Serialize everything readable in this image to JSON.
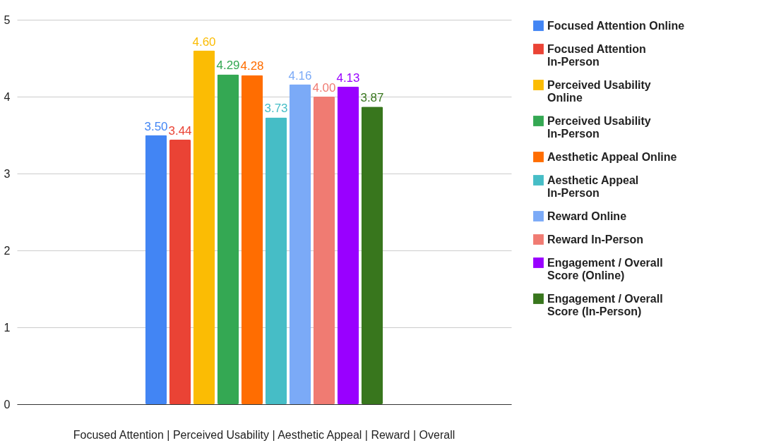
{
  "chart_data": {
    "type": "bar",
    "categories": [
      "Focused Attention | Perceived Usability | Aesthetic Appeal | Reward | Overall"
    ],
    "series": [
      {
        "name": "Focused Attention Online",
        "color": "#4285f4",
        "values": [
          3.5
        ],
        "value_labels": [
          "3.50"
        ]
      },
      {
        "name": "Focused Attention In-Person",
        "color": "#ea4335",
        "values": [
          3.44
        ],
        "value_labels": [
          "3.44"
        ]
      },
      {
        "name": "Perceived Usability Online",
        "color": "#fbbc04",
        "values": [
          4.6
        ],
        "value_labels": [
          "4.60"
        ]
      },
      {
        "name": "Perceived Usability In-Person",
        "color": "#34a853",
        "values": [
          4.29
        ],
        "value_labels": [
          "4.29"
        ]
      },
      {
        "name": "Aesthetic Appeal Online",
        "color": "#ff6d01",
        "values": [
          4.28
        ],
        "value_labels": [
          "4.28"
        ]
      },
      {
        "name": "Aesthetic Appeal In-Person",
        "color": "#46bdc6",
        "values": [
          3.73
        ],
        "value_labels": [
          "3.73"
        ]
      },
      {
        "name": "Reward Online",
        "color": "#7baaf7",
        "values": [
          4.16
        ],
        "value_labels": [
          "4.16"
        ]
      },
      {
        "name": "Reward In-Person",
        "color": "#f07b72",
        "values": [
          4.0
        ],
        "value_labels": [
          "4.00"
        ]
      },
      {
        "name": "Engagement / Overall Score (Online)",
        "color": "#9900ff",
        "values": [
          4.13
        ],
        "value_labels": [
          "4.13"
        ]
      },
      {
        "name": "Engagement / Overall Score (In-Person)",
        "color": "#38761d",
        "values": [
          3.87
        ],
        "value_labels": [
          "3.87"
        ]
      }
    ],
    "ylim": [
      0,
      5
    ],
    "yticks": [
      0,
      1,
      2,
      3,
      4,
      5
    ],
    "grid": "y",
    "legend": "right"
  }
}
